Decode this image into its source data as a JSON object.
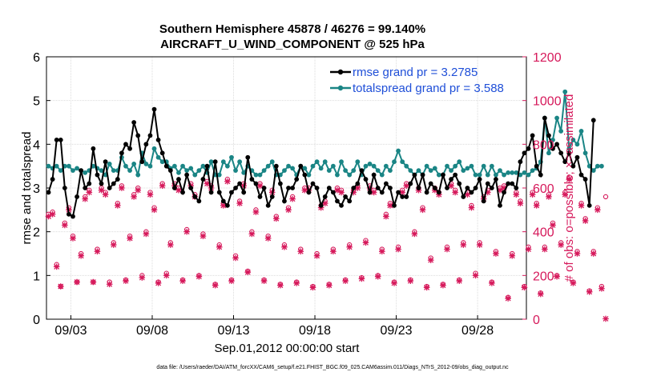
{
  "chart_data": {
    "type": "line",
    "title_line1": "Southern Hemisphere 45878 / 46276 = 99.140%",
    "title_line2": "AIRCRAFT_U_WIND_COMPONENT @ 525 hPa",
    "xlabel": "Sep.01,2012 00:00:00 start",
    "ylabel_left": "rmse and totalspread",
    "ylabel_right": "# of obs: o=possible; ×=assimilated",
    "footer": "data file: /Users/raeder/DAI/ATM_forcXX/CAM6_setup/f.e21.FHIST_BGC.f09_025.CAM6assim.011/Diags_NTrS_2012-09/obs_diag_output.nc",
    "x_ticks": [
      {
        "day": 3,
        "label": "09/03"
      },
      {
        "day": 8,
        "label": "09/08"
      },
      {
        "day": 13,
        "label": "09/13"
      },
      {
        "day": 18,
        "label": "09/18"
      },
      {
        "day": 23,
        "label": "09/23"
      },
      {
        "day": 28,
        "label": "09/28"
      }
    ],
    "xlim": [
      1.5,
      31.0
    ],
    "ylim_left": [
      0,
      6
    ],
    "y_ticks_left": [
      "0",
      "1",
      "2",
      "3",
      "4",
      "5",
      "6"
    ],
    "ylim_right": [
      0,
      1200
    ],
    "y_ticks_right": [
      "0",
      "200",
      "400",
      "600",
      "800",
      "1000",
      "1200"
    ],
    "colors": {
      "rmse": "#000000",
      "spread": "#1a8585",
      "obs": "#d6195b",
      "legend_text": "#1f4fd8"
    },
    "series": [
      {
        "name": "rmse grand pr = 3.2785",
        "start_day": 1.625,
        "step_day": 0.25,
        "values": [
          2.9,
          3.2,
          4.1,
          4.1,
          3.0,
          2.4,
          2.35,
          2.8,
          3.4,
          3.0,
          3.1,
          3.9,
          3.3,
          3.1,
          3.6,
          3.0,
          3.1,
          3.2,
          3.8,
          4.0,
          3.9,
          4.5,
          4.2,
          3.6,
          4.0,
          4.2,
          4.8,
          4.1,
          3.8,
          3.5,
          3.4,
          3.0,
          3.2,
          2.9,
          3.3,
          3.0,
          2.8,
          2.7,
          3.2,
          3.5,
          2.9,
          3.6,
          2.9,
          2.7,
          2.6,
          2.9,
          3.0,
          3.1,
          2.9,
          3.7,
          3.2,
          3.1,
          2.8,
          3.0,
          2.6,
          2.8,
          3.5,
          3.1,
          2.7,
          3.0,
          3.0,
          3.2,
          3.5,
          3.3,
          2.9,
          3.1,
          3.0,
          2.6,
          2.8,
          3.0,
          2.9,
          2.7,
          2.6,
          2.8,
          2.7,
          3.0,
          3.1,
          3.4,
          3.2,
          2.9,
          3.3,
          3.0,
          2.9,
          3.1,
          3.0,
          2.6,
          2.9,
          2.8,
          2.8,
          3.1,
          3.3,
          3.0,
          3.3,
          2.9,
          3.1,
          3.0,
          2.9,
          3.3,
          3.0,
          3.2,
          3.3,
          3.1,
          2.8,
          3.0,
          2.9,
          3.0,
          3.2,
          2.7,
          3.1,
          3.0,
          3.2,
          2.6,
          2.9,
          3.1,
          3.1,
          3.0,
          3.6,
          3.8,
          3.9,
          4.2,
          3.5,
          3.3,
          4.6,
          4.2,
          3.9,
          4.0,
          3.8,
          3.6,
          3.8,
          3.5,
          3.7,
          3.3,
          3.2,
          2.6,
          4.55
        ]
      },
      {
        "name": "totalspread grand pr = 3.588",
        "start_day": 1.625,
        "step_day": 0.25,
        "values": [
          3.5,
          3.45,
          3.5,
          3.4,
          3.5,
          3.5,
          3.4,
          3.45,
          3.4,
          3.35,
          3.4,
          3.5,
          3.45,
          3.4,
          3.3,
          3.55,
          3.4,
          3.4,
          3.7,
          3.5,
          3.4,
          3.55,
          3.3,
          3.8,
          3.55,
          3.5,
          3.9,
          3.7,
          3.6,
          3.6,
          3.45,
          3.5,
          3.35,
          3.5,
          3.4,
          3.45,
          3.3,
          3.4,
          3.5,
          3.35,
          3.6,
          3.3,
          3.3,
          3.6,
          3.5,
          3.7,
          3.4,
          3.6,
          3.35,
          3.5,
          3.4,
          3.3,
          3.3,
          3.4,
          3.5,
          3.6,
          3.3,
          3.3,
          3.4,
          3.5,
          3.45,
          3.3,
          3.5,
          3.45,
          3.3,
          3.5,
          3.6,
          3.45,
          3.6,
          3.4,
          3.5,
          3.3,
          3.6,
          3.4,
          3.3,
          3.4,
          3.6,
          3.3,
          3.5,
          3.55,
          3.5,
          3.4,
          3.3,
          3.5,
          3.4,
          3.6,
          3.85,
          3.6,
          3.5,
          3.4,
          3.3,
          3.4,
          3.3,
          3.5,
          3.4,
          3.45,
          3.3,
          3.3,
          3.5,
          3.4,
          3.5,
          3.6,
          3.4,
          3.45,
          3.5,
          3.3,
          3.3,
          3.5,
          3.3,
          3.5,
          3.3,
          3.4,
          3.3,
          3.35,
          3.35,
          3.35,
          3.3,
          3.35,
          3.3,
          3.4,
          3.45,
          3.6,
          4.6,
          3.8,
          4.1,
          4.6,
          4.3,
          5.2,
          3.9,
          4.1,
          4.0,
          4.3,
          3.8,
          3.5,
          3.4,
          3.5,
          3.5
        ]
      }
    ],
    "obs_possible": {
      "start_day": 1.625,
      "step_day": 0.25,
      "values": [
        480,
        490,
        250,
        150,
        440,
        510,
        380,
        170,
        300,
        560,
        590,
        170,
        320,
        600,
        580,
        170,
        350,
        530,
        610,
        180,
        380,
        570,
        600,
        200,
        400,
        580,
        510,
        170,
        620,
        210,
        350,
        620,
        600,
        180,
        410,
        620,
        570,
        200,
        390,
        630,
        610,
        160,
        340,
        530,
        640,
        180,
        290,
        540,
        620,
        220,
        400,
        500,
        620,
        180,
        380,
        590,
        470,
        160,
        340,
        510,
        560,
        170,
        320,
        600,
        600,
        150,
        300,
        520,
        540,
        160,
        320,
        600,
        590,
        180,
        340,
        590,
        610,
        190,
        360,
        610,
        590,
        200,
        320,
        480,
        530,
        170,
        330,
        590,
        620,
        180,
        400,
        600,
        510,
        150,
        280,
        600,
        580,
        160,
        330,
        620,
        590,
        180,
        350,
        580,
        520,
        210,
        350,
        560,
        590,
        170,
        310,
        600,
        610,
        100,
        300,
        580,
        540,
        150,
        330,
        580,
        530,
        120,
        330,
        570,
        440,
        200,
        350,
        580,
        650,
        170,
        310,
        530,
        460,
        130,
        310,
        510,
        150,
        560
      ]
    },
    "obs_assimilated": {
      "start_day": 1.625,
      "step_day": 0.25,
      "values": [
        470,
        480,
        240,
        150,
        430,
        500,
        370,
        170,
        290,
        550,
        580,
        170,
        310,
        590,
        570,
        160,
        340,
        520,
        600,
        175,
        370,
        560,
        590,
        190,
        390,
        570,
        500,
        165,
        610,
        200,
        340,
        610,
        590,
        175,
        400,
        610,
        560,
        195,
        380,
        620,
        600,
        155,
        330,
        520,
        630,
        175,
        280,
        530,
        610,
        215,
        390,
        490,
        610,
        175,
        370,
        580,
        460,
        155,
        330,
        500,
        550,
        165,
        310,
        590,
        590,
        145,
        290,
        510,
        530,
        155,
        310,
        590,
        580,
        175,
        330,
        580,
        600,
        185,
        350,
        600,
        580,
        195,
        310,
        470,
        520,
        165,
        320,
        580,
        610,
        175,
        390,
        590,
        500,
        145,
        270,
        590,
        570,
        155,
        320,
        610,
        580,
        175,
        340,
        570,
        510,
        200,
        340,
        550,
        580,
        165,
        300,
        590,
        600,
        95,
        290,
        570,
        530,
        145,
        320,
        570,
        520,
        115,
        320,
        560,
        430,
        195,
        340,
        570,
        640,
        165,
        300,
        520,
        450,
        125,
        300,
        500,
        140,
        2
      ]
    },
    "legend_position": "top-right"
  }
}
